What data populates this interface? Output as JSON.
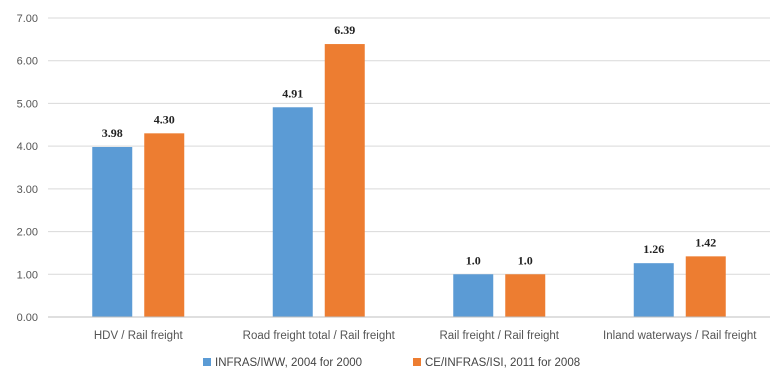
{
  "chart_data": {
    "type": "bar",
    "categories": [
      "HDV / Rail freight",
      "Road freight total / Rail freight",
      "Rail freight / Rail freight",
      "Inland waterways / Rail freight"
    ],
    "series": [
      {
        "name": "INFRAS/IWW, 2004 for 2000",
        "values": [
          3.98,
          4.91,
          1.0,
          1.26
        ],
        "labels": [
          "3.98",
          "4.91",
          "1.0",
          "1.26"
        ],
        "color": "#5B9BD5"
      },
      {
        "name": "CE/INFRAS/ISI, 2011 for 2008",
        "values": [
          4.3,
          6.39,
          1.0,
          1.42
        ],
        "labels": [
          "4.30",
          "6.39",
          "1.0",
          "1.42"
        ],
        "color": "#ED7D31"
      }
    ],
    "yticks": [
      "0.00",
      "1.00",
      "2.00",
      "3.00",
      "4.00",
      "5.00",
      "6.00",
      "7.00"
    ],
    "ylim": [
      0,
      7
    ],
    "grid": true,
    "legend": "bottom-center",
    "gridColor": "#d9d9d9",
    "axisColor": "#bfbfbf"
  }
}
